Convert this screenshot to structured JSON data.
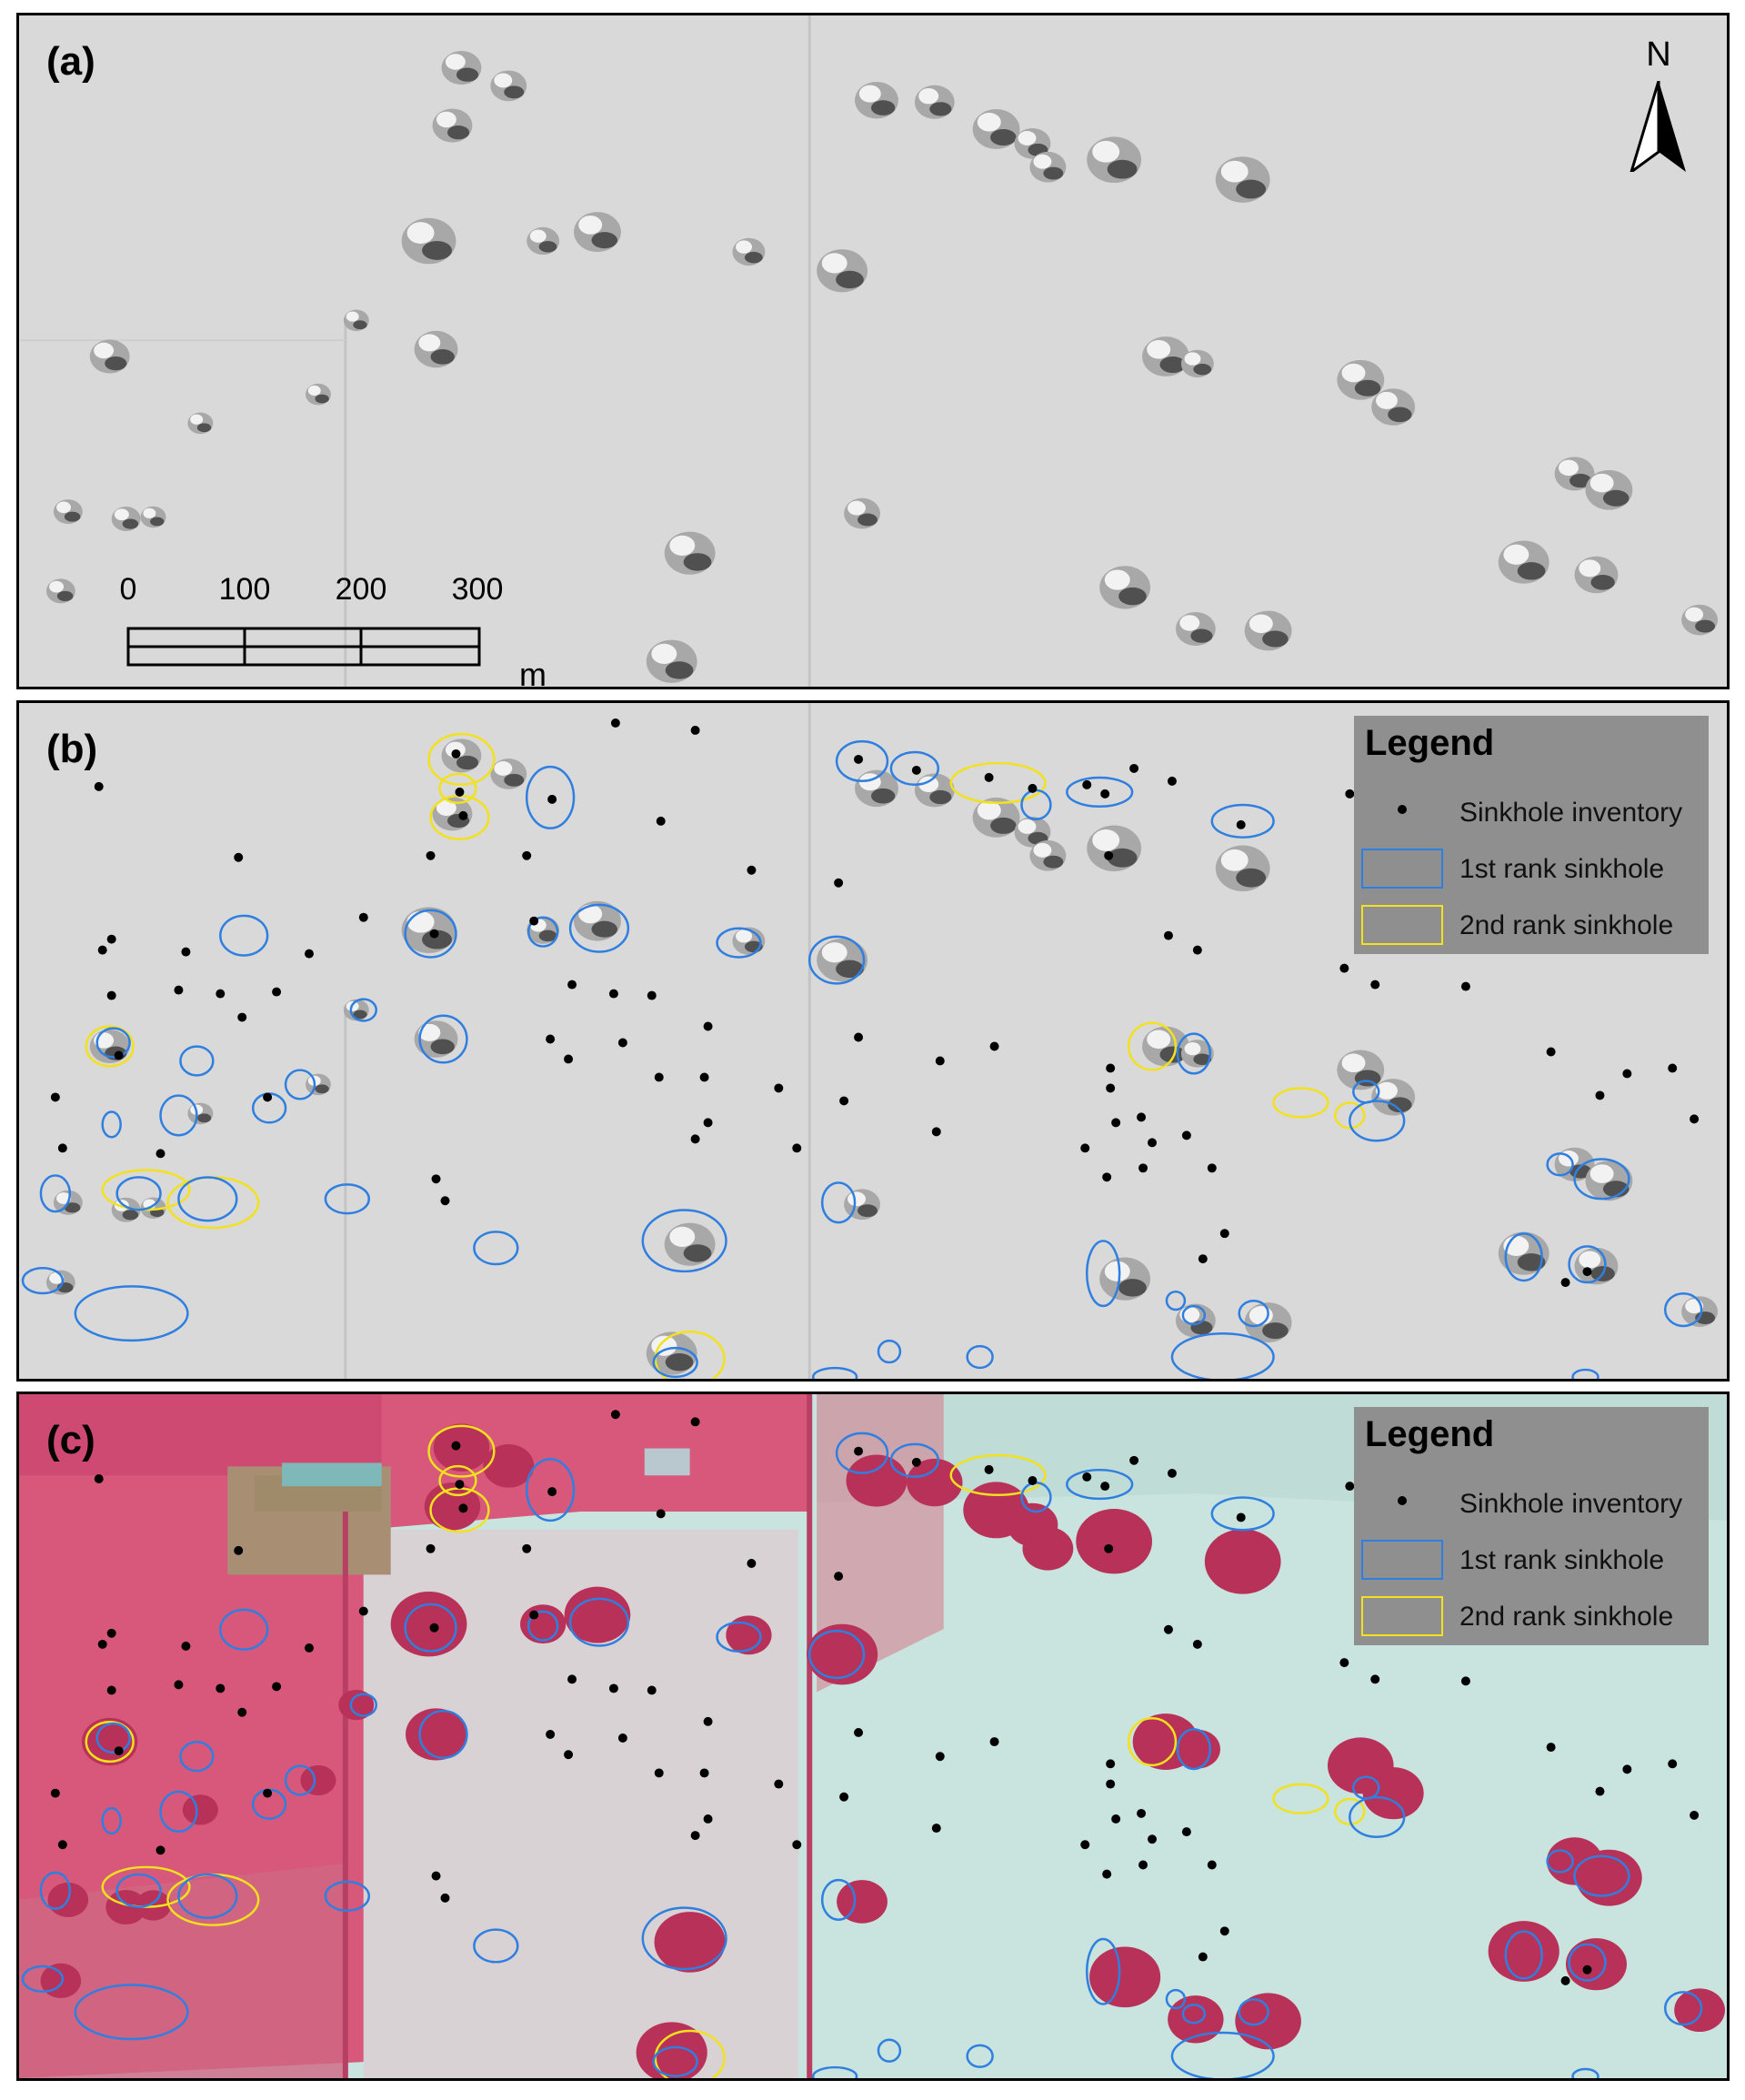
{
  "panels": [
    {
      "id": "a",
      "label": "(a)",
      "type": "hillshade"
    },
    {
      "id": "b",
      "label": "(b)",
      "type": "hillshade-annotated"
    },
    {
      "id": "c",
      "label": "(c)",
      "type": "infrared-annotated"
    }
  ],
  "north_arrow": {
    "label": "N"
  },
  "scale_bar": {
    "ticks": [
      "0",
      "100",
      "200",
      "300"
    ],
    "unit": "m"
  },
  "legend": {
    "title": "Legend",
    "items": [
      {
        "label": "Sinkhole inventory",
        "symbol": "point",
        "color": "#000000"
      },
      {
        "label": "1st rank sinkhole",
        "symbol": "polygon",
        "color": "#2f7fe0"
      },
      {
        "label": "2nd rank sinkhole",
        "symbol": "polygon",
        "color": "#f2e11d"
      }
    ]
  },
  "colors": {
    "hillshade": "#d9d9d9",
    "vegetation": "#d8476c",
    "bare_field": "#c7e2dd",
    "first_rank": "#2f7fe0",
    "second_rank": "#f2e11d",
    "inventory": "#000000"
  }
}
